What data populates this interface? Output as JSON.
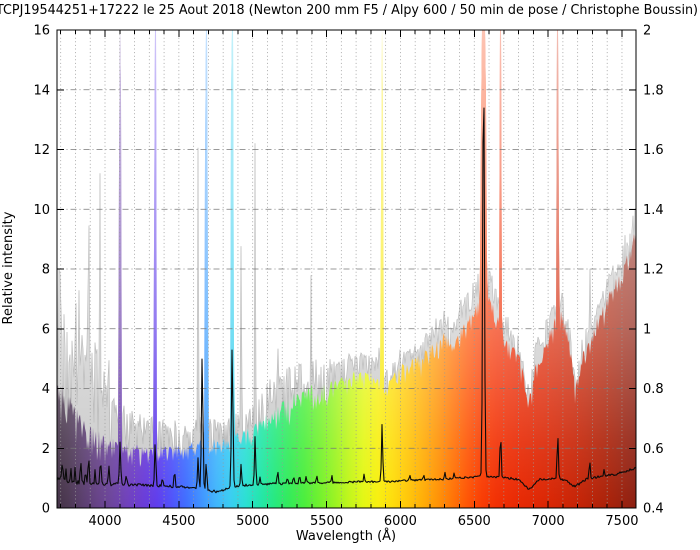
{
  "title": "TCPJ19544251+17222 le 25 Aout 2018 (Newton 200 mm F5 / Alpy 600 / 50 min de pose / Christophe Boussin)",
  "chart_data": {
    "type": "area",
    "title": "TCPJ19544251+17222 le 25 Aout 2018 (Newton 200 mm F5 / Alpy 600 / 50 min de pose / Christophe Boussin)",
    "xlabel": "Wavelength (Å)",
    "ylabel_left": "Relative intensity",
    "xlim": [
      3675,
      7595
    ],
    "ylim_left": [
      0,
      16
    ],
    "ylim_right": [
      0.4,
      2
    ],
    "x_major_ticks": [
      4000,
      4500,
      5000,
      5500,
      6000,
      6500,
      7000,
      7500
    ],
    "x_minor_step": 100,
    "y_left_ticks": [
      0,
      2,
      4,
      6,
      8,
      10,
      12,
      14,
      16
    ],
    "y_right_ticks": [
      0.4,
      0.6,
      0.8,
      1,
      1.2,
      1.4,
      1.6,
      1.8,
      2
    ],
    "grid": {
      "vertical": "dotted every 100 A",
      "horizontal": "dash-dot every 2 units",
      "on": true
    },
    "legend": "none",
    "series": [
      {
        "name": "gray-noisy-spectrum",
        "style": "light-gray filled area, left axis",
        "envelope": [
          [
            3675,
            8.2
          ],
          [
            3700,
            7.8
          ],
          [
            3725,
            6.8
          ],
          [
            3750,
            7.3
          ],
          [
            3775,
            6.2
          ],
          [
            3800,
            6.6
          ],
          [
            3835,
            7.6
          ],
          [
            3860,
            6.0
          ],
          [
            3889,
            5.6
          ],
          [
            3910,
            5.2
          ],
          [
            3935,
            5.4
          ],
          [
            3965,
            4.9
          ],
          [
            3990,
            4.6
          ],
          [
            4026,
            4.0
          ],
          [
            4060,
            3.6
          ],
          [
            4100,
            3.4
          ],
          [
            4150,
            3.2
          ],
          [
            4200,
            3.0
          ],
          [
            4250,
            2.9
          ],
          [
            4300,
            3.0
          ],
          [
            4360,
            2.8
          ],
          [
            4420,
            2.7
          ],
          [
            4471,
            2.7
          ],
          [
            4520,
            2.6
          ],
          [
            4570,
            2.6
          ],
          [
            4620,
            2.8
          ],
          [
            4660,
            2.9
          ],
          [
            4713,
            2.9
          ],
          [
            4760,
            2.8
          ],
          [
            4810,
            2.9
          ],
          [
            4880,
            3.0
          ],
          [
            4960,
            3.2
          ],
          [
            5060,
            3.6
          ],
          [
            5110,
            4.2
          ],
          [
            5210,
            4.4
          ],
          [
            5260,
            4.7
          ],
          [
            5340,
            4.7
          ],
          [
            5430,
            4.9
          ],
          [
            5500,
            4.7
          ],
          [
            5550,
            4.9
          ],
          [
            5600,
            4.8
          ],
          [
            5650,
            5.0
          ],
          [
            5700,
            5.1
          ],
          [
            5760,
            5.0
          ],
          [
            5820,
            4.9
          ],
          [
            5855,
            5.2
          ],
          [
            5895,
            4.4
          ],
          [
            5950,
            4.7
          ],
          [
            6000,
            5.1
          ],
          [
            6060,
            5.2
          ],
          [
            6120,
            5.4
          ],
          [
            6180,
            5.7
          ],
          [
            6240,
            6.1
          ],
          [
            6300,
            6.4
          ],
          [
            6340,
            6.0
          ],
          [
            6400,
            6.7
          ],
          [
            6460,
            7.1
          ],
          [
            6520,
            7.6
          ],
          [
            6600,
            7.8
          ],
          [
            6640,
            7.3
          ],
          [
            6720,
            6.3
          ],
          [
            6780,
            5.9
          ],
          [
            6820,
            5.2
          ],
          [
            6870,
            3.8
          ],
          [
            6910,
            5.3
          ],
          [
            6950,
            6.0
          ],
          [
            7000,
            6.4
          ],
          [
            7045,
            6.7
          ],
          [
            7100,
            7.0
          ],
          [
            7150,
            5.8
          ],
          [
            7185,
            4.3
          ],
          [
            7230,
            5.5
          ],
          [
            7320,
            6.4
          ],
          [
            7360,
            7.0
          ],
          [
            7400,
            7.5
          ],
          [
            7450,
            8.0
          ],
          [
            7500,
            8.8
          ],
          [
            7550,
            9.4
          ],
          [
            7595,
            10.1
          ]
        ],
        "noise_depth": [
          [
            3675,
            5.5
          ],
          [
            3900,
            3.4
          ],
          [
            4050,
            1.8
          ],
          [
            4200,
            1.3
          ],
          [
            4600,
            1.2
          ],
          [
            4800,
            1.1
          ],
          [
            5100,
            2.0
          ],
          [
            5500,
            1.7
          ],
          [
            5700,
            0.9
          ],
          [
            6200,
            0.9
          ],
          [
            6500,
            1.0
          ],
          [
            6900,
            1.0
          ],
          [
            7100,
            1.1
          ],
          [
            7300,
            1.3
          ],
          [
            7595,
            1.6
          ]
        ],
        "spikes": [
          [
            3889,
            13.4
          ],
          [
            3965,
            12.8
          ],
          [
            4026,
            5.6
          ],
          [
            4471,
            3.4
          ],
          [
            4630,
            12.6
          ],
          [
            4922,
            10.2
          ],
          [
            5016,
            12.9
          ],
          [
            5169,
            7.1
          ],
          [
            5303,
            6.6
          ],
          [
            5395,
            8.1
          ],
          [
            5460,
            6.4
          ],
          [
            6300,
            6.9
          ],
          [
            7281,
            11.2
          ]
        ]
      },
      {
        "name": "rainbow-colored-spectrum",
        "style": "wavelength-colored filled area fading to white upward, left axis",
        "envelope": [
          [
            3675,
            4.3
          ],
          [
            3750,
            3.7
          ],
          [
            3800,
            3.3
          ],
          [
            3900,
            2.7
          ],
          [
            4000,
            2.3
          ],
          [
            4100,
            2.1
          ],
          [
            4200,
            2.0
          ],
          [
            4300,
            1.9
          ],
          [
            4400,
            2.0
          ],
          [
            4500,
            2.0
          ],
          [
            4600,
            2.1
          ],
          [
            4700,
            2.2
          ],
          [
            4800,
            2.2
          ],
          [
            4900,
            2.4
          ],
          [
            5000,
            2.7
          ],
          [
            5100,
            3.1
          ],
          [
            5200,
            3.5
          ],
          [
            5300,
            3.8
          ],
          [
            5400,
            4.0
          ],
          [
            5500,
            4.1
          ],
          [
            5600,
            4.3
          ],
          [
            5700,
            4.5
          ],
          [
            5800,
            4.4
          ],
          [
            5900,
            4.2
          ],
          [
            6000,
            4.7
          ],
          [
            6100,
            4.9
          ],
          [
            6200,
            5.4
          ],
          [
            6300,
            6.0
          ],
          [
            6350,
            5.6
          ],
          [
            6430,
            6.1
          ],
          [
            6500,
            6.7
          ],
          [
            6620,
            7.0
          ],
          [
            6700,
            5.7
          ],
          [
            6800,
            5.1
          ],
          [
            6870,
            3.6
          ],
          [
            6950,
            5.5
          ],
          [
            7000,
            5.9
          ],
          [
            7050,
            6.3
          ],
          [
            7100,
            6.6
          ],
          [
            7150,
            5.3
          ],
          [
            7185,
            4.1
          ],
          [
            7250,
            5.4
          ],
          [
            7300,
            5.9
          ],
          [
            7400,
            7.0
          ],
          [
            7500,
            7.9
          ],
          [
            7595,
            9.3
          ]
        ],
        "noise_depth": [
          [
            3675,
            1.5
          ],
          [
            4300,
            0.6
          ],
          [
            4800,
            0.5
          ],
          [
            5300,
            1.0
          ],
          [
            5700,
            0.6
          ],
          [
            6300,
            0.8
          ],
          [
            7000,
            0.8
          ],
          [
            7595,
            0.7
          ]
        ],
        "emission_bands_to_top": [
          {
            "wl": 4102,
            "hw": 11
          },
          {
            "wl": 4340,
            "hw": 11
          },
          {
            "wl": 4686,
            "hw": 14
          },
          {
            "wl": 4861,
            "hw": 14
          },
          {
            "wl": 5876,
            "hw": 10
          },
          {
            "wl": 6563,
            "hw": 26
          },
          {
            "wl": 6678,
            "hw": 10
          },
          {
            "wl": 7065,
            "hw": 10
          }
        ]
      },
      {
        "name": "black-line-spectrum",
        "style": "thin black line, right axis (right = 0.4 + 0.1 * left)",
        "baseline": [
          [
            3675,
            1.0
          ],
          [
            3800,
            0.88
          ],
          [
            3900,
            0.85
          ],
          [
            4000,
            0.82
          ],
          [
            4150,
            0.78
          ],
          [
            4300,
            0.76
          ],
          [
            4450,
            0.72
          ],
          [
            4600,
            0.7
          ],
          [
            4700,
            0.58
          ],
          [
            4760,
            0.55
          ],
          [
            4850,
            0.68
          ],
          [
            4950,
            0.76
          ],
          [
            5100,
            0.8
          ],
          [
            5300,
            0.84
          ],
          [
            5500,
            0.85
          ],
          [
            5700,
            0.88
          ],
          [
            5900,
            0.88
          ],
          [
            6100,
            0.93
          ],
          [
            6300,
            0.97
          ],
          [
            6450,
            1.02
          ],
          [
            6563,
            1.06
          ],
          [
            6700,
            1.02
          ],
          [
            6800,
            0.96
          ],
          [
            6870,
            0.62
          ],
          [
            6940,
            0.95
          ],
          [
            7060,
            1.0
          ],
          [
            7120,
            0.92
          ],
          [
            7180,
            0.72
          ],
          [
            7260,
            0.96
          ],
          [
            7350,
            1.05
          ],
          [
            7450,
            1.12
          ],
          [
            7520,
            1.22
          ],
          [
            7595,
            1.35
          ]
        ],
        "noise": [
          [
            3675,
            0.1
          ],
          [
            4200,
            0.05
          ],
          [
            5000,
            0.04
          ],
          [
            6000,
            0.03
          ],
          [
            7595,
            0.04
          ]
        ],
        "peaks": [
          [
            3712,
            0.55,
            5
          ],
          [
            3735,
            0.4,
            4
          ],
          [
            3770,
            0.45,
            4
          ],
          [
            3798,
            0.6,
            4
          ],
          [
            3835,
            0.8,
            5
          ],
          [
            3868,
            0.45,
            4
          ],
          [
            3889,
            1.05,
            5
          ],
          [
            3933,
            0.45,
            4
          ],
          [
            3970,
            0.9,
            5
          ],
          [
            4026,
            0.55,
            5
          ],
          [
            4102,
            1.4,
            6
          ],
          [
            4144,
            0.3,
            5
          ],
          [
            4340,
            1.5,
            6
          ],
          [
            4388,
            0.3,
            5
          ],
          [
            4471,
            0.6,
            5
          ],
          [
            4630,
            1.0,
            6
          ],
          [
            4658,
            4.5,
            7
          ],
          [
            4686,
            1.0,
            5
          ],
          [
            4861,
            4.7,
            7
          ],
          [
            4922,
            0.8,
            5
          ],
          [
            5016,
            1.6,
            6
          ],
          [
            5048,
            0.3,
            4
          ],
          [
            5169,
            0.5,
            5
          ],
          [
            5235,
            0.25,
            4
          ],
          [
            5276,
            0.3,
            4
          ],
          [
            5317,
            0.35,
            4
          ],
          [
            5363,
            0.25,
            4
          ],
          [
            5433,
            0.3,
            4
          ],
          [
            5535,
            0.3,
            4
          ],
          [
            5755,
            0.3,
            4
          ],
          [
            5876,
            1.95,
            6
          ],
          [
            6063,
            0.2,
            4
          ],
          [
            6157,
            0.25,
            4
          ],
          [
            6300,
            0.3,
            4
          ],
          [
            6364,
            0.2,
            4
          ],
          [
            6563,
            14.1,
            8
          ],
          [
            6678,
            1.7,
            5
          ],
          [
            7065,
            1.5,
            6
          ],
          [
            7281,
            0.65,
            5
          ],
          [
            7378,
            0.2,
            4
          ]
        ]
      }
    ],
    "spectrum_colors": [
      [
        3675,
        "#443247"
      ],
      [
        3750,
        "#4c3852"
      ],
      [
        3850,
        "#5a3e6e"
      ],
      [
        3950,
        "#664287"
      ],
      [
        4050,
        "#6c449e"
      ],
      [
        4150,
        "#6f40bb"
      ],
      [
        4250,
        "#6a3bd4"
      ],
      [
        4350,
        "#5f3cec"
      ],
      [
        4450,
        "#4f52fa"
      ],
      [
        4550,
        "#3f6eff"
      ],
      [
        4650,
        "#3e92ff"
      ],
      [
        4750,
        "#40b4fc"
      ],
      [
        4850,
        "#38cdf2"
      ],
      [
        4950,
        "#2adfd4"
      ],
      [
        5050,
        "#21e6ab"
      ],
      [
        5150,
        "#25e97e"
      ],
      [
        5250,
        "#33eb57"
      ],
      [
        5350,
        "#4bee3c"
      ],
      [
        5450,
        "#6ff12c"
      ],
      [
        5550,
        "#97f321"
      ],
      [
        5650,
        "#c0f619"
      ],
      [
        5750,
        "#e3f713"
      ],
      [
        5850,
        "#f8ef0e"
      ],
      [
        5950,
        "#fedc0a"
      ],
      [
        6050,
        "#ffc607"
      ],
      [
        6150,
        "#ffae05"
      ],
      [
        6250,
        "#ff9304"
      ],
      [
        6350,
        "#ff7404"
      ],
      [
        6450,
        "#fe5503"
      ],
      [
        6550,
        "#f93c02"
      ],
      [
        6650,
        "#f22f02"
      ],
      [
        6800,
        "#e82802"
      ],
      [
        7000,
        "#da2503"
      ],
      [
        7200,
        "#c62305"
      ],
      [
        7400,
        "#ab2108"
      ],
      [
        7595,
        "#8c2012"
      ]
    ],
    "colors": {
      "gray_fill": "#cbcbcb",
      "gray_edge": "#b3b3b3",
      "black_line": "#0a0a0a",
      "grid_vertical": "#999999",
      "grid_horizontal": "#777777",
      "border": "#000000",
      "background": "#ffffff"
    }
  }
}
